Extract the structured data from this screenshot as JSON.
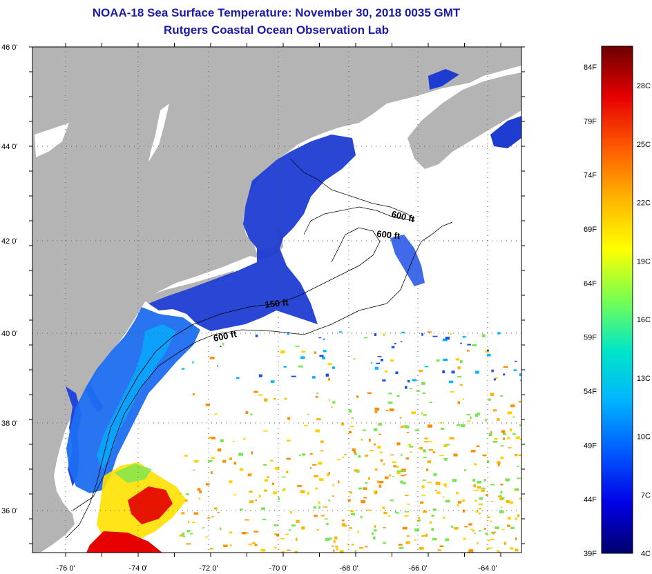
{
  "title": "NOAA-18 Sea Surface Temperature:  November 30, 2018 0035 GMT",
  "subtitle": "Rutgers Coastal Ocean Observation Lab",
  "lat_labels": [
    "46 0'",
    "44 0'",
    "42 0'",
    "40 0'",
    "38 0'",
    "36 0'"
  ],
  "lon_labels": [
    "-76 0'",
    "-74 0'",
    "-72 0'",
    "-70 0'",
    "-68 0'",
    "-66 0'",
    "-64 0'"
  ],
  "depth_labels": [
    "600 ft",
    "600 ft",
    "150 ft",
    "600 ft"
  ],
  "colorbar": {
    "fahrenheit": [
      "84F",
      "79F",
      "74F",
      "69F",
      "64F",
      "59F",
      "54F",
      "49F",
      "44F",
      "39F"
    ],
    "celsius": [
      "28C",
      "25C",
      "22C",
      "19C",
      "16C",
      "13C",
      "10C",
      "7C",
      "4C"
    ],
    "colors": [
      "#00006e",
      "#0000e6",
      "#005aff",
      "#00b4ff",
      "#00e6c8",
      "#78ff50",
      "#ffff00",
      "#ffb400",
      "#ff5a00",
      "#e60000",
      "#6e0000"
    ]
  },
  "colors": {
    "land": "#b4b4b4",
    "cloud": "#ffffff",
    "cold_water": "#1e50e6",
    "warm_water": "#e60000",
    "title": "#1a1aa6"
  }
}
